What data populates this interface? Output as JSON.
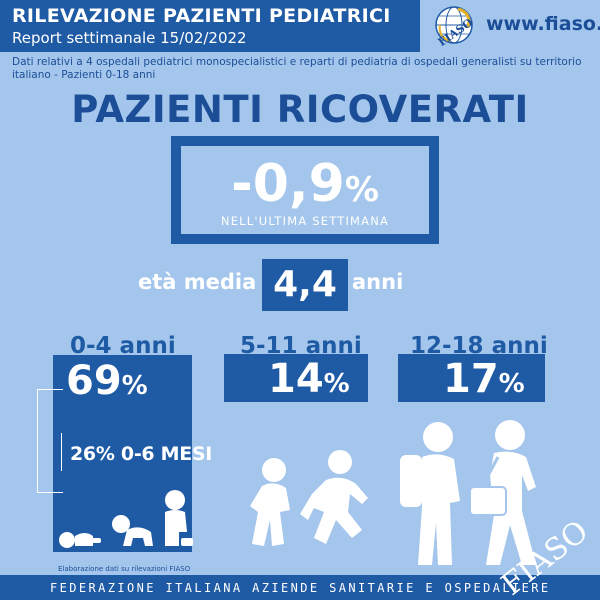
{
  "header": {
    "title": "RILEVAZIONE PAZIENTI PEDIATRICI",
    "subtitle": "Report settimanale 15/02/2022",
    "logo_text": "FIASO",
    "website": "www.fiaso.it"
  },
  "description": "Dati relativi a 4 ospedali pediatrici monospecialistici e reparti di pediatria di ospedali generalisti su territorio italiano - Pazienti 0-18 anni",
  "main": {
    "title": "PAZIENTI RICOVERATI",
    "change_value": "-0,9",
    "change_unit": "%",
    "change_caption": "NELL'ULTIMA SETTIMANA",
    "age_label": "età media",
    "age_value": "4,4",
    "age_unit": "anni"
  },
  "groups": [
    {
      "label": "0-4 anni",
      "value": "69",
      "unit": "%",
      "detail": "26% 0-6 MESI",
      "icon": "toddlers-icon"
    },
    {
      "label": "5-11 anni",
      "value": "14",
      "unit": "%",
      "icon": "running-children-icon"
    },
    {
      "label": "12-18 anni",
      "value": "17",
      "unit": "%",
      "icon": "teens-with-backpacks-icon"
    }
  ],
  "footer": {
    "credit": "Elaborazione dati su rilevazioni FIASO",
    "text": "FEDERAZIONE ITALIANA AZIENDE SANITARIE E OSPEDALIERE",
    "watermark": "FIASO"
  },
  "colors": {
    "background": "#a4c6ec",
    "primary": "#1f5aa5",
    "text_dark": "#1c4e97",
    "text_light": "#ffffff"
  }
}
